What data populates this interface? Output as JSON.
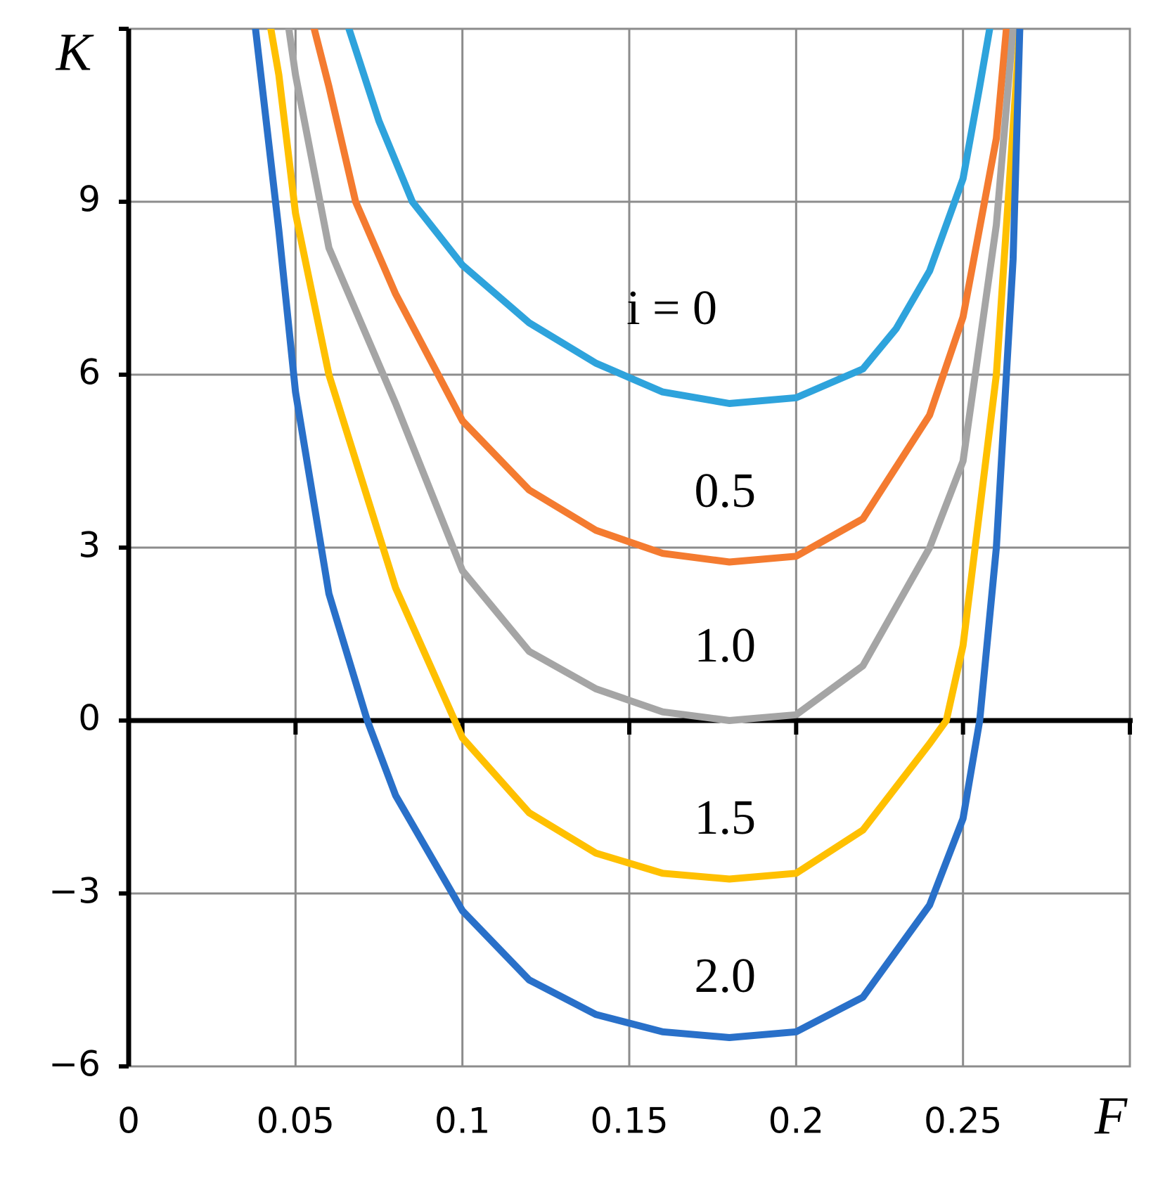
{
  "chart_data": {
    "type": "line",
    "xlabel": "F",
    "ylabel": "K",
    "xlim": [
      0,
      0.3
    ],
    "ylim": [
      -6,
      12
    ],
    "xticks": [
      0,
      0.05,
      0.1,
      0.15,
      0.2,
      0.25
    ],
    "yticks": [
      {
        "value": -6,
        "label": "−6"
      },
      {
        "value": -3,
        "label": "−3"
      },
      0,
      3,
      6,
      9
    ],
    "grid": true,
    "series": [
      {
        "name": "i = 0",
        "color": "#2ea3dc",
        "x": [
          0.066,
          0.075,
          0.085,
          0.1,
          0.12,
          0.14,
          0.16,
          0.18,
          0.2,
          0.22,
          0.23,
          0.24,
          0.25,
          0.255,
          0.258
        ],
        "values": [
          12,
          10.4,
          9,
          7.9,
          6.9,
          6.2,
          5.7,
          5.5,
          5.6,
          6.1,
          6.8,
          7.8,
          9.4,
          11,
          12
        ]
      },
      {
        "name": "0.5",
        "color": "#f47b30",
        "x": [
          0.0556,
          0.06,
          0.068,
          0.08,
          0.1,
          0.12,
          0.14,
          0.16,
          0.18,
          0.2,
          0.22,
          0.24,
          0.25,
          0.26,
          0.263
        ],
        "values": [
          12,
          11,
          9,
          7.4,
          5.2,
          4.0,
          3.3,
          2.9,
          2.75,
          2.85,
          3.5,
          5.3,
          7.0,
          10.1,
          12
        ]
      },
      {
        "name": "1.0",
        "color": "#a5a5a5",
        "x": [
          0.048,
          0.05,
          0.06,
          0.08,
          0.1,
          0.12,
          0.14,
          0.16,
          0.18,
          0.2,
          0.22,
          0.24,
          0.25,
          0.26,
          0.265
        ],
        "values": [
          12,
          11.2,
          8.2,
          5.5,
          2.6,
          1.2,
          0.55,
          0.15,
          0,
          0.1,
          0.95,
          3.0,
          4.5,
          8.6,
          12
        ]
      },
      {
        "name": "1.5",
        "color": "#ffc000",
        "x": [
          0.0426,
          0.045,
          0.05,
          0.06,
          0.08,
          0.1,
          0.12,
          0.14,
          0.16,
          0.18,
          0.2,
          0.22,
          0.24,
          0.245,
          0.25,
          0.26,
          0.267
        ],
        "values": [
          12,
          11.2,
          8.8,
          6.0,
          2.3,
          -0.3,
          -1.6,
          -2.3,
          -2.65,
          -2.75,
          -2.65,
          -1.9,
          -0.4,
          0,
          1.3,
          6,
          12
        ]
      },
      {
        "name": "2.0",
        "color": "#2970c9",
        "x": [
          0.038,
          0.04,
          0.045,
          0.05,
          0.06,
          0.0715,
          0.08,
          0.1,
          0.12,
          0.14,
          0.16,
          0.18,
          0.2,
          0.22,
          0.24,
          0.25,
          0.255,
          0.26,
          0.265,
          0.267
        ],
        "values": [
          12,
          11,
          8.5,
          5.7,
          2.2,
          0,
          -1.3,
          -3.3,
          -4.5,
          -5.1,
          -5.4,
          -5.5,
          -5.4,
          -4.8,
          -3.2,
          -1.7,
          0,
          3,
          8,
          12
        ]
      }
    ]
  }
}
